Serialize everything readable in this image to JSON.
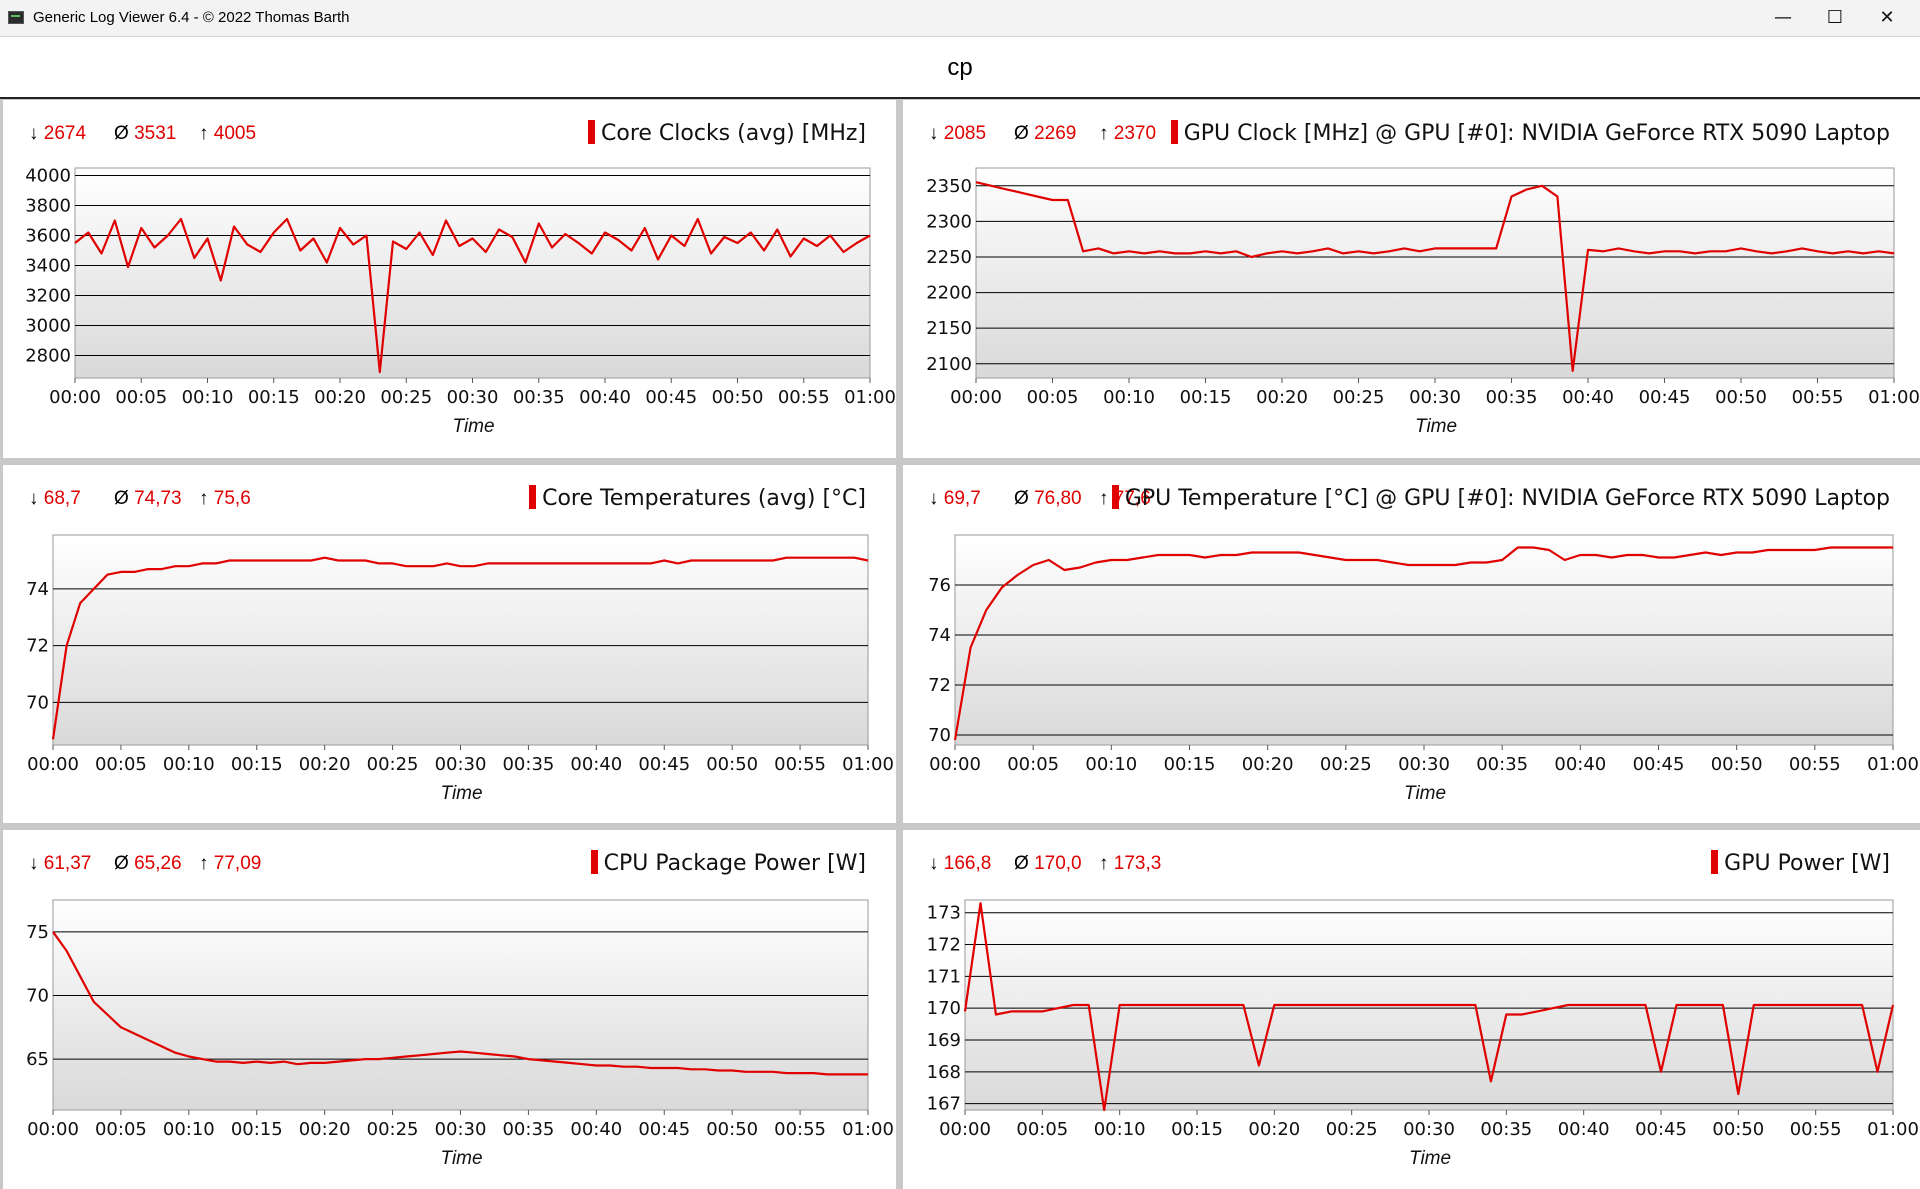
{
  "window": {
    "title": "Generic Log Viewer 6.4 - © 2022 Thomas Barth",
    "icons": {
      "minimize": "minimize-icon",
      "maximize": "maximize-icon",
      "close": "close-icon"
    }
  },
  "page": {
    "heading": "cp"
  },
  "colors": {
    "series": "#e00000",
    "grid": "#000000",
    "background_gradient": [
      "#ffffff",
      "#d9d9d9"
    ]
  },
  "chart_data": [
    {
      "type": "line",
      "title": "Core Clocks (avg) [MHz]",
      "stats": {
        "min": "2674",
        "avg": "3531",
        "max": "4005"
      },
      "xlabel": "Time",
      "x_ticks": [
        "00:00",
        "00:05",
        "00:10",
        "00:15",
        "00:20",
        "00:25",
        "00:30",
        "00:35",
        "00:40",
        "00:45",
        "00:50",
        "00:55",
        "01:00"
      ],
      "y_ticks": [
        2800,
        3000,
        3200,
        3400,
        3600,
        3800,
        4000
      ],
      "ylim": [
        2650,
        4050
      ],
      "series": [
        {
          "values": [
            3550,
            3620,
            3480,
            3700,
            3390,
            3650,
            3520,
            3600,
            3710,
            3450,
            3580,
            3300,
            3660,
            3540,
            3490,
            3620,
            3710,
            3500,
            3580,
            3420,
            3650,
            3540,
            3600,
            2690,
            3560,
            3510,
            3620,
            3470,
            3700,
            3530,
            3580,
            3490,
            3640,
            3590,
            3420,
            3680,
            3520,
            3610,
            3550,
            3480,
            3620,
            3570,
            3500,
            3650,
            3440,
            3600,
            3530,
            3710,
            3480,
            3590,
            3550,
            3620,
            3500,
            3640,
            3460,
            3580,
            3530,
            3600,
            3490,
            3550,
            3600
          ]
        }
      ]
    },
    {
      "type": "line",
      "title": "GPU Clock [MHz] @ GPU [#0]: NVIDIA GeForce RTX 5090 Laptop",
      "stats": {
        "min": "2085",
        "avg": "2269",
        "max": "2370"
      },
      "xlabel": "Time",
      "x_ticks": [
        "00:00",
        "00:05",
        "00:10",
        "00:15",
        "00:20",
        "00:25",
        "00:30",
        "00:35",
        "00:40",
        "00:45",
        "00:50",
        "00:55",
        "01:00"
      ],
      "y_ticks": [
        2100,
        2150,
        2200,
        2250,
        2300,
        2350
      ],
      "ylim": [
        2080,
        2375
      ],
      "series": [
        {
          "values": [
            2355,
            2350,
            2345,
            2340,
            2335,
            2330,
            2330,
            2258,
            2262,
            2255,
            2258,
            2255,
            2258,
            2255,
            2255,
            2258,
            2255,
            2258,
            2250,
            2255,
            2258,
            2255,
            2258,
            2262,
            2255,
            2258,
            2255,
            2258,
            2262,
            2258,
            2262,
            2262,
            2262,
            2262,
            2262,
            2335,
            2345,
            2350,
            2335,
            2090,
            2260,
            2258,
            2262,
            2258,
            2255,
            2258,
            2258,
            2255,
            2258,
            2258,
            2262,
            2258,
            2255,
            2258,
            2262,
            2258,
            2255,
            2258,
            2255,
            2258,
            2255
          ]
        }
      ]
    },
    {
      "type": "line",
      "title": "Core Temperatures (avg) [°C]",
      "stats": {
        "min": "68,7",
        "avg": "74,73",
        "max": "75,6"
      },
      "xlabel": "Time",
      "x_ticks": [
        "00:00",
        "00:05",
        "00:10",
        "00:15",
        "00:20",
        "00:25",
        "00:30",
        "00:35",
        "00:40",
        "00:45",
        "00:50",
        "00:55",
        "01:00"
      ],
      "y_ticks": [
        70,
        72,
        74
      ],
      "ylim": [
        68.5,
        75.9
      ],
      "series": [
        {
          "values": [
            68.7,
            72.0,
            73.5,
            74.0,
            74.5,
            74.6,
            74.6,
            74.7,
            74.7,
            74.8,
            74.8,
            74.9,
            74.9,
            75.0,
            75.0,
            75.0,
            75.0,
            75.0,
            75.0,
            75.0,
            75.1,
            75.0,
            75.0,
            75.0,
            74.9,
            74.9,
            74.8,
            74.8,
            74.8,
            74.9,
            74.8,
            74.8,
            74.9,
            74.9,
            74.9,
            74.9,
            74.9,
            74.9,
            74.9,
            74.9,
            74.9,
            74.9,
            74.9,
            74.9,
            74.9,
            75.0,
            74.9,
            75.0,
            75.0,
            75.0,
            75.0,
            75.0,
            75.0,
            75.0,
            75.1,
            75.1,
            75.1,
            75.1,
            75.1,
            75.1,
            75.0
          ]
        }
      ]
    },
    {
      "type": "line",
      "title": "GPU Temperature [°C] @ GPU [#0]: NVIDIA GeForce RTX 5090 Laptop",
      "stats": {
        "min": "69,7",
        "avg": "76,80",
        "max": "77,6"
      },
      "xlabel": "Time",
      "x_ticks": [
        "00:00",
        "00:05",
        "00:10",
        "00:15",
        "00:20",
        "00:25",
        "00:30",
        "00:35",
        "00:40",
        "00:45",
        "00:50",
        "00:55",
        "01:00"
      ],
      "y_ticks": [
        70,
        72,
        74,
        76
      ],
      "ylim": [
        69.6,
        78.0
      ],
      "series": [
        {
          "values": [
            69.8,
            73.5,
            75.0,
            75.9,
            76.4,
            76.8,
            77.0,
            76.6,
            76.7,
            76.9,
            77.0,
            77.0,
            77.1,
            77.2,
            77.2,
            77.2,
            77.1,
            77.2,
            77.2,
            77.3,
            77.3,
            77.3,
            77.3,
            77.2,
            77.1,
            77.0,
            77.0,
            77.0,
            76.9,
            76.8,
            76.8,
            76.8,
            76.8,
            76.9,
            76.9,
            77.0,
            77.5,
            77.5,
            77.4,
            77.0,
            77.2,
            77.2,
            77.1,
            77.2,
            77.2,
            77.1,
            77.1,
            77.2,
            77.3,
            77.2,
            77.3,
            77.3,
            77.4,
            77.4,
            77.4,
            77.4,
            77.5,
            77.5,
            77.5,
            77.5,
            77.5
          ]
        }
      ]
    },
    {
      "type": "line",
      "title": "CPU Package Power [W]",
      "stats": {
        "min": "61,37",
        "avg": "65,26",
        "max": "77,09"
      },
      "xlabel": "Time",
      "x_ticks": [
        "00:00",
        "00:05",
        "00:10",
        "00:15",
        "00:20",
        "00:25",
        "00:30",
        "00:35",
        "00:40",
        "00:45",
        "00:50",
        "00:55",
        "01:00"
      ],
      "y_ticks": [
        65,
        70,
        75
      ],
      "ylim": [
        61.0,
        77.5
      ],
      "series": [
        {
          "values": [
            75.0,
            73.5,
            71.5,
            69.5,
            68.5,
            67.5,
            67.0,
            66.5,
            66.0,
            65.5,
            65.2,
            65.0,
            64.8,
            64.8,
            64.7,
            64.8,
            64.7,
            64.8,
            64.6,
            64.7,
            64.7,
            64.8,
            64.9,
            65.0,
            65.0,
            65.1,
            65.2,
            65.3,
            65.4,
            65.5,
            65.6,
            65.5,
            65.4,
            65.3,
            65.2,
            65.0,
            64.9,
            64.8,
            64.7,
            64.6,
            64.5,
            64.5,
            64.4,
            64.4,
            64.3,
            64.3,
            64.3,
            64.2,
            64.2,
            64.1,
            64.1,
            64.0,
            64.0,
            64.0,
            63.9,
            63.9,
            63.9,
            63.8,
            63.8,
            63.8,
            63.8
          ]
        }
      ]
    },
    {
      "type": "line",
      "title": "GPU Power [W]",
      "stats": {
        "min": "166,8",
        "avg": "170,0",
        "max": "173,3"
      },
      "xlabel": "Time",
      "x_ticks": [
        "00:00",
        "00:05",
        "00:10",
        "00:15",
        "00:20",
        "00:25",
        "00:30",
        "00:35",
        "00:40",
        "00:45",
        "00:50",
        "00:55",
        "01:00"
      ],
      "y_ticks": [
        167,
        168,
        169,
        170,
        171,
        172,
        173
      ],
      "ylim": [
        166.8,
        173.4
      ],
      "series": [
        {
          "values": [
            169.9,
            173.3,
            169.8,
            169.9,
            169.9,
            169.9,
            170.0,
            170.1,
            170.1,
            166.8,
            170.1,
            170.1,
            170.1,
            170.1,
            170.1,
            170.1,
            170.1,
            170.1,
            170.1,
            168.2,
            170.1,
            170.1,
            170.1,
            170.1,
            170.1,
            170.1,
            170.1,
            170.1,
            170.1,
            170.1,
            170.1,
            170.1,
            170.1,
            170.1,
            167.7,
            169.8,
            169.8,
            169.9,
            170.0,
            170.1,
            170.1,
            170.1,
            170.1,
            170.1,
            170.1,
            168.0,
            170.1,
            170.1,
            170.1,
            170.1,
            167.3,
            170.1,
            170.1,
            170.1,
            170.1,
            170.1,
            170.1,
            170.1,
            170.1,
            168.0,
            170.1
          ]
        }
      ]
    }
  ]
}
